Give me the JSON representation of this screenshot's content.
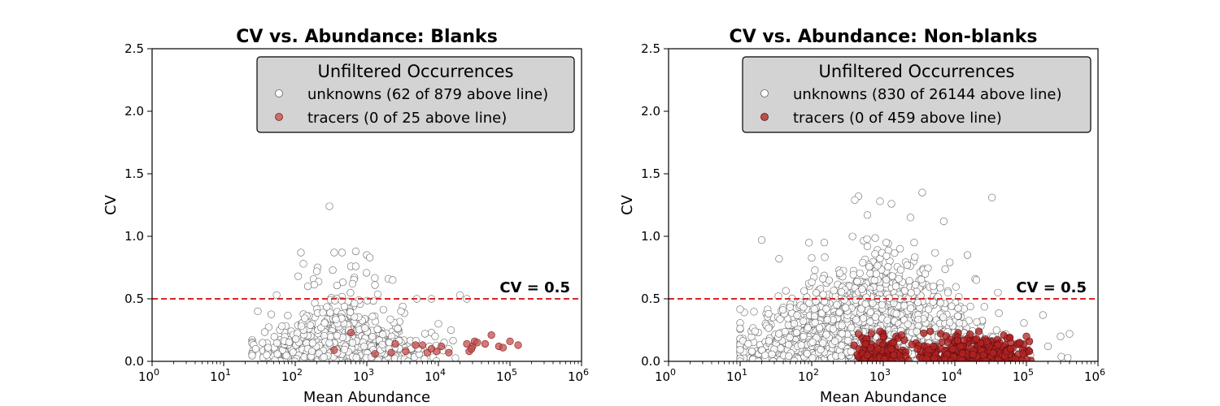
{
  "chart_data": [
    {
      "type": "scatter",
      "title": "CV vs. Abundance: Blanks",
      "xlabel": "Mean Abundance",
      "ylabel": "CV",
      "xscale": "log",
      "xlim": [
        1,
        1000000
      ],
      "ylim": [
        0,
        2.5
      ],
      "x_tick_exponents": [
        "0",
        "1",
        "2",
        "3",
        "4",
        "5",
        "6"
      ],
      "y_ticks": [
        "0.0",
        "0.5",
        "1.0",
        "1.5",
        "2.0",
        "2.5"
      ],
      "grid": false,
      "legend": {
        "placement": "upper-right",
        "title": "Unfiltered Occurrences",
        "entries": [
          "unknowns (62 of 879 above line)",
          "tracers (0 of 25 above line)"
        ]
      },
      "threshold": {
        "value": 0.5,
        "label": "CV = 0.5",
        "color": "#d62728"
      },
      "series": [
        {
          "name": "unknowns (62 of 879 above line)",
          "color": "#ffffff",
          "edge": "#666666",
          "count": 879,
          "above_line": 62,
          "x_range": [
            25,
            30000
          ],
          "points": [
            [
              300,
              1.24
            ],
            [
              120,
              0.87
            ],
            [
              350,
              0.87
            ],
            [
              450,
              0.87
            ],
            [
              700,
              0.88
            ],
            [
              1000,
              0.85
            ],
            [
              1100,
              0.83
            ],
            [
              130,
              0.78
            ],
            [
              600,
              0.76
            ],
            [
              700,
              0.76
            ],
            [
              200,
              0.72
            ],
            [
              110,
              0.68
            ],
            [
              2000,
              0.66
            ],
            [
              2300,
              0.65
            ],
            [
              1300,
              0.61
            ],
            [
              20000,
              0.53
            ],
            [
              25000,
              0.5
            ],
            [
              8000,
              0.5
            ],
            [
              55,
              0.53
            ],
            [
              150,
              0.6
            ],
            [
              3000,
              0.4
            ],
            [
              5000,
              0.5
            ],
            [
              10000,
              0.3
            ],
            [
              15000,
              0.25
            ],
            [
              30,
              0.4
            ],
            [
              28,
              0.1
            ],
            [
              40,
              0.05
            ],
            [
              9000,
              0.2
            ],
            [
              14000,
              0.1
            ],
            [
              12000,
              0.15
            ]
          ]
        },
        {
          "name": "tracers (0 of 25 above line)",
          "color": "#c0504d",
          "edge": "#8b1a1a",
          "count": 25,
          "above_line": 0,
          "points": [
            [
              600,
              0.23
            ],
            [
              350,
              0.09
            ],
            [
              1300,
              0.06
            ],
            [
              2200,
              0.07
            ],
            [
              2500,
              0.14
            ],
            [
              4800,
              0.13
            ],
            [
              6000,
              0.13
            ],
            [
              7000,
              0.07
            ],
            [
              8000,
              0.1
            ],
            [
              9500,
              0.08
            ],
            [
              11000,
              0.12
            ],
            [
              14000,
              0.07
            ],
            [
              25000,
              0.14
            ],
            [
              27000,
              0.08
            ],
            [
              30000,
              0.12
            ],
            [
              32000,
              0.16
            ],
            [
              35000,
              0.15
            ],
            [
              45000,
              0.14
            ],
            [
              55000,
              0.21
            ],
            [
              70000,
              0.12
            ],
            [
              80000,
              0.11
            ],
            [
              100000,
              0.16
            ],
            [
              130000,
              0.13
            ],
            [
              29000,
              0.1
            ],
            [
              3500,
              0.08
            ]
          ]
        }
      ]
    },
    {
      "type": "scatter",
      "title": "CV vs. Abundance: Non-blanks",
      "xlabel": "Mean Abundance",
      "ylabel": "CV",
      "xscale": "log",
      "xlim": [
        1,
        1000000
      ],
      "ylim": [
        0,
        2.5
      ],
      "x_tick_exponents": [
        "0",
        "1",
        "2",
        "3",
        "4",
        "5",
        "6"
      ],
      "y_ticks": [
        "0.0",
        "0.5",
        "1.0",
        "1.5",
        "2.0",
        "2.5"
      ],
      "grid": false,
      "legend": {
        "placement": "upper-right",
        "title": "Unfiltered Occurrences",
        "entries": [
          "unknowns (830 of 26144 above line)",
          "tracers (0 of 459 above line)"
        ]
      },
      "threshold": {
        "value": 0.5,
        "label": "CV = 0.5",
        "color": "#d62728"
      },
      "series": [
        {
          "name": "unknowns (830 of 26144 above line)",
          "color": "#ffffff",
          "edge": "#666666",
          "count": 26144,
          "above_line": 830,
          "x_range": [
            10,
            500000
          ],
          "points": [
            [
              3500,
              1.35
            ],
            [
              450,
              1.32
            ],
            [
              400,
              1.29
            ],
            [
              33000,
              1.31
            ],
            [
              900,
              1.28
            ],
            [
              1300,
              1.26
            ],
            [
              600,
              1.17
            ],
            [
              2400,
              1.15
            ],
            [
              7000,
              1.12
            ],
            [
              20,
              0.97
            ],
            [
              150,
              0.95
            ],
            [
              2700,
              0.95
            ],
            [
              10,
              0.0
            ],
            [
              13,
              0.14
            ],
            [
              15000,
              0.85
            ],
            [
              35,
              0.82
            ],
            [
              600,
              0.92
            ],
            [
              1100,
              0.95
            ],
            [
              300000,
              0.2
            ],
            [
              400000,
              0.22
            ],
            [
              170000,
              0.37
            ],
            [
              20000,
              0.65
            ],
            [
              40000,
              0.55
            ],
            [
              5000,
              0.6
            ],
            [
              8000,
              0.55
            ],
            [
              200000,
              0.12
            ],
            [
              25,
              0.38
            ],
            [
              18,
              0.0
            ],
            [
              1500,
              0.6
            ],
            [
              800,
              0.7
            ]
          ]
        },
        {
          "name": "tracers (0 of 459 above line)",
          "color": "#b22222",
          "edge": "#5a0f0f",
          "count": 459,
          "above_line": 0,
          "x_range": [
            400,
            120000
          ],
          "points": [
            [
              450,
              0.22
            ],
            [
              900,
              0.24
            ],
            [
              1000,
              0.2
            ],
            [
              1300,
              0.1
            ],
            [
              1400,
              0.05
            ],
            [
              3000,
              0.1
            ],
            [
              5000,
              0.12
            ],
            [
              8000,
              0.15
            ],
            [
              12000,
              0.12
            ],
            [
              20000,
              0.18
            ],
            [
              28000,
              0.16
            ],
            [
              40000,
              0.13
            ],
            [
              60000,
              0.1
            ],
            [
              80000,
              0.15
            ],
            [
              100000,
              0.2
            ],
            [
              110000,
              0.08
            ],
            [
              600,
              0.05
            ],
            [
              1800,
              0.21
            ],
            [
              25000,
              0.05
            ],
            [
              70000,
              0.02
            ]
          ]
        }
      ]
    }
  ]
}
